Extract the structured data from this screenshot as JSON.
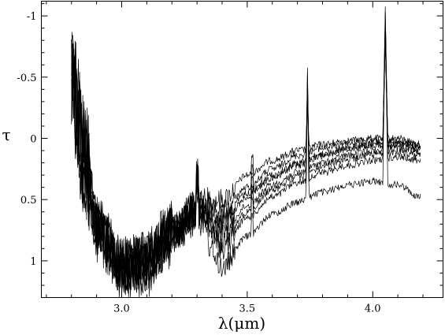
{
  "chart_data": {
    "type": "line",
    "title": "",
    "xlabel": "λ(μm)",
    "ylabel": "τ",
    "xlim": [
      2.68,
      4.28
    ],
    "ylim": [
      1.3,
      -1.12
    ],
    "y_inverted": true,
    "grid": false,
    "legend": "none",
    "xticks": [
      3.0,
      3.5,
      4.0
    ],
    "xtick_labels": [
      "3.0",
      "3.5",
      "4.0"
    ],
    "yticks": [
      1,
      0.5,
      0,
      -0.5,
      -1
    ],
    "ytick_labels": [
      "1",
      "0.5",
      "0",
      "-0.5",
      "-1"
    ],
    "line_color": "#000000",
    "features": {
      "peak_near_3_74": -0.62,
      "peak_near_4_05": -1.1,
      "noise_region": [
        2.8,
        3.2
      ]
    },
    "series": [
      {
        "x": [
          2.8,
          2.85,
          2.9,
          3.0,
          3.1,
          3.2,
          3.3,
          3.4,
          3.5,
          3.6,
          3.7,
          3.8,
          3.9,
          4.0,
          4.1,
          4.19
        ],
        "values": [
          -0.65,
          0.05,
          0.65,
          1.02,
          0.98,
          0.75,
          0.55,
          0.5,
          0.3,
          0.18,
          0.1,
          0.05,
          0.02,
          0.0,
          0.0,
          0.05
        ]
      },
      {
        "x": [
          2.8,
          2.85,
          2.9,
          3.0,
          3.1,
          3.2,
          3.3,
          3.4,
          3.5,
          3.6,
          3.7,
          3.8,
          3.9,
          4.0,
          4.1,
          4.19
        ],
        "values": [
          -0.55,
          0.1,
          0.7,
          1.0,
          0.95,
          0.72,
          0.55,
          0.6,
          0.4,
          0.25,
          0.14,
          0.08,
          0.04,
          0.02,
          0.02,
          0.05
        ]
      },
      {
        "x": [
          2.8,
          2.85,
          2.9,
          3.0,
          3.1,
          3.2,
          3.3,
          3.4,
          3.5,
          3.6,
          3.7,
          3.8,
          3.9,
          4.0,
          4.1,
          4.19
        ],
        "values": [
          -0.5,
          0.2,
          0.72,
          1.05,
          1.0,
          0.78,
          0.58,
          0.78,
          0.55,
          0.38,
          0.28,
          0.2,
          0.14,
          0.1,
          0.08,
          0.1
        ]
      },
      {
        "x": [
          2.8,
          2.85,
          2.9,
          3.0,
          3.1,
          3.2,
          3.3,
          3.4,
          3.5,
          3.6,
          3.7,
          3.8,
          3.9,
          4.0,
          4.1,
          4.19
        ],
        "values": [
          -0.45,
          0.15,
          0.75,
          1.1,
          1.05,
          0.8,
          0.6,
          0.9,
          0.65,
          0.48,
          0.36,
          0.28,
          0.22,
          0.18,
          0.15,
          0.18
        ]
      },
      {
        "x": [
          2.8,
          2.85,
          2.9,
          3.0,
          3.1,
          3.2,
          3.3,
          3.4,
          3.5,
          3.6,
          3.7,
          3.8,
          3.9,
          4.0,
          4.1,
          4.19
        ],
        "values": [
          -0.6,
          0.05,
          0.68,
          1.02,
          0.98,
          0.74,
          0.56,
          0.65,
          0.45,
          0.3,
          0.2,
          0.13,
          0.08,
          0.05,
          0.04,
          0.06
        ]
      },
      {
        "x": [
          2.8,
          2.85,
          2.9,
          3.0,
          3.1,
          3.2,
          3.3,
          3.4,
          3.5,
          3.6,
          3.7,
          3.8,
          3.9,
          4.0,
          4.1,
          4.19
        ],
        "values": [
          -0.4,
          0.25,
          0.8,
          1.12,
          1.08,
          0.85,
          0.65,
          1.05,
          0.8,
          0.62,
          0.52,
          0.44,
          0.38,
          0.35,
          0.38,
          0.48
        ]
      },
      {
        "x": [
          2.8,
          2.85,
          2.9,
          3.0,
          3.1,
          3.2,
          3.3,
          3.4,
          3.5,
          3.6,
          3.7,
          3.8,
          3.9,
          4.0,
          4.1,
          4.19
        ],
        "values": [
          -0.55,
          0.12,
          0.7,
          1.05,
          1.0,
          0.76,
          0.56,
          0.7,
          0.48,
          0.32,
          0.22,
          0.14,
          0.09,
          0.06,
          0.05,
          0.1
        ]
      },
      {
        "x": [
          2.8,
          2.85,
          2.9,
          3.0,
          3.1,
          3.2,
          3.3,
          3.4,
          3.5,
          3.6,
          3.7,
          3.8,
          3.9,
          4.0,
          4.1,
          4.19
        ],
        "values": [
          -0.5,
          0.18,
          0.74,
          1.06,
          1.02,
          0.79,
          0.59,
          0.85,
          0.6,
          0.42,
          0.31,
          0.24,
          0.17,
          0.13,
          0.11,
          0.14
        ]
      }
    ]
  }
}
